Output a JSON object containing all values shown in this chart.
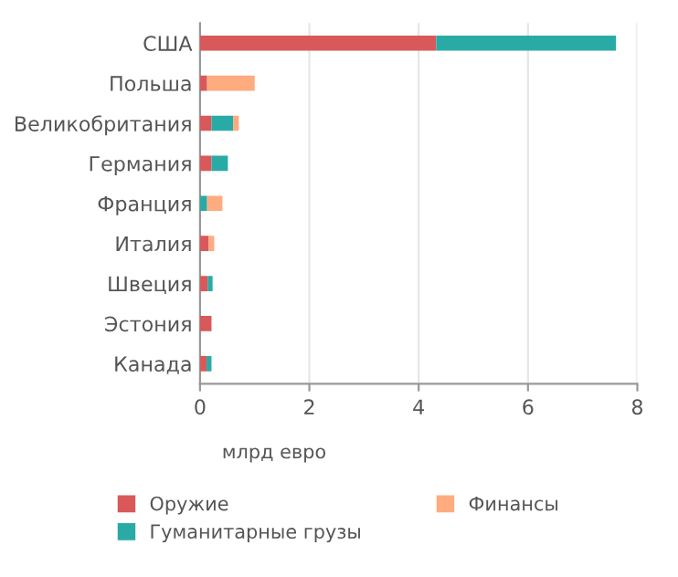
{
  "chart_data": {
    "type": "bar",
    "orientation": "horizontal",
    "stacked": true,
    "xlabel": "млрд евро",
    "categories": [
      "США",
      "Польша",
      "Великобритания",
      "Германия",
      "Франция",
      "Италия",
      "Швеция",
      "Эстония",
      "Канада"
    ],
    "series": [
      {
        "name": "Оружие",
        "color": "#d9585a",
        "values": [
          4.32,
          0.13,
          0.21,
          0.21,
          0,
          0.16,
          0.14,
          0.21,
          0.12
        ]
      },
      {
        "name": "Гуманитарные грузы",
        "color": "#2aaaa5",
        "values": [
          3.29,
          0,
          0.4,
          0.3,
          0.13,
          0,
          0.09,
          0,
          0.09
        ]
      },
      {
        "name": "Финансы",
        "color": "#ffab80",
        "values": [
          0,
          0.87,
          0.1,
          0,
          0.28,
          0.1,
          0,
          0,
          0
        ]
      }
    ],
    "xlim": [
      0,
      8
    ],
    "xticks": [
      0,
      2,
      4,
      6,
      8
    ],
    "grid": "x",
    "legend": "bottom"
  }
}
